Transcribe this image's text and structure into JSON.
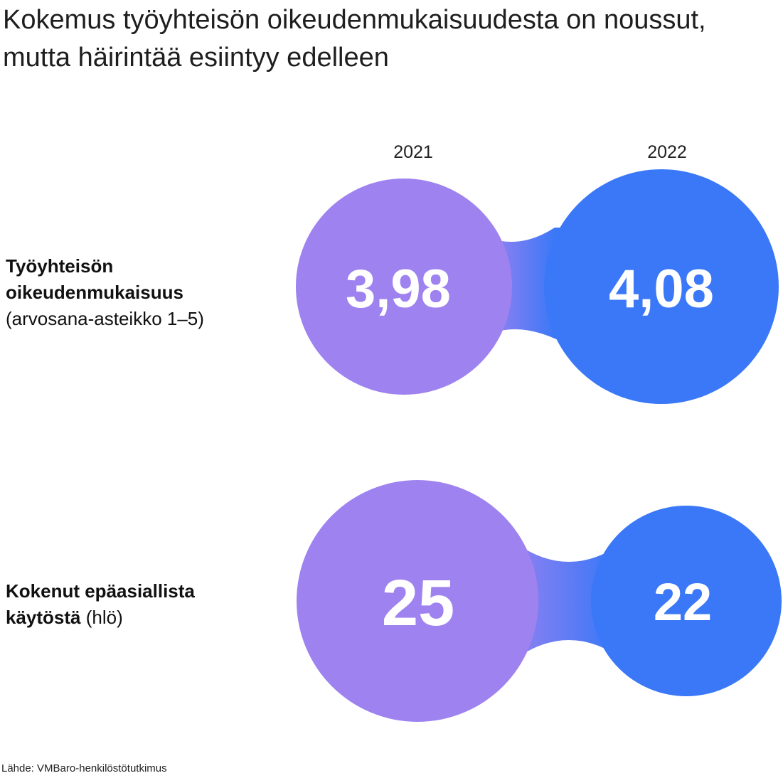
{
  "title": "Kokemus työyhteisön oikeudenmukaisuudesta on noussut, mutta häirintää esiintyy edelleen",
  "source": "Lähde: VMBaro-henkilöstötutkimus",
  "colors": {
    "purple": "#9E82F0",
    "blue": "#3B78F7"
  },
  "chart_data": {
    "type": "bubble-comparison",
    "categories": [
      "2021",
      "2022"
    ],
    "rows": [
      {
        "label_main": "Työyhteisön oikeudenmukaisuus",
        "label_unit": "(arvosana-asteikko 1–5)",
        "display": [
          "3,98",
          "4,08"
        ],
        "values": [
          3.98,
          4.08
        ]
      },
      {
        "label_main": "Kokenut epäasiallista käytöstä",
        "label_unit": "(hlö)",
        "display": [
          "25",
          "22"
        ],
        "values": [
          25,
          22
        ]
      }
    ]
  }
}
